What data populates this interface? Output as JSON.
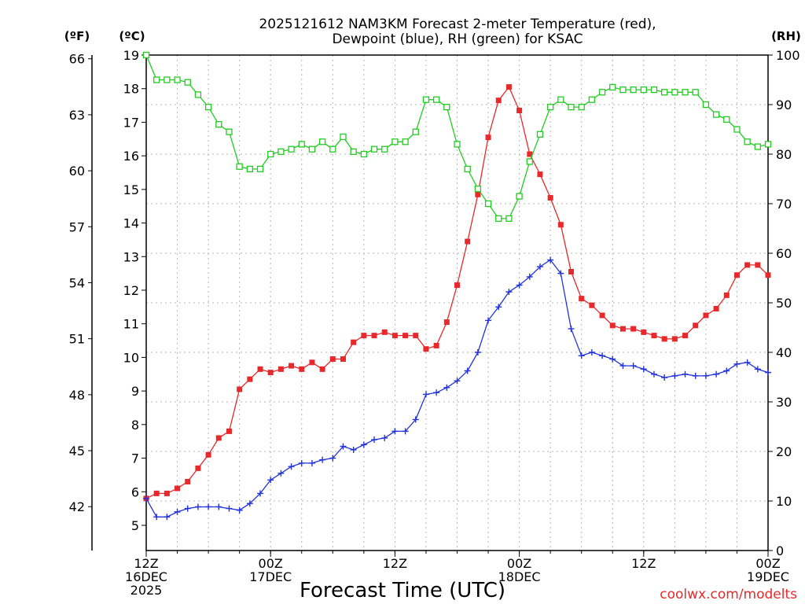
{
  "chart_data": {
    "type": "line",
    "title": [
      "2025121612 NAM3KM Forecast 2-meter Temperature (red),",
      "Dewpoint (blue), RH (green) for KSAC"
    ],
    "xlabel": "Forecast Time (UTC)",
    "credit": "coolwx.com/modelts",
    "axes": {
      "celsius": {
        "unit_label": "(ºC)",
        "range": [
          4.25,
          19
        ],
        "ticks": [
          5,
          6,
          7,
          8,
          9,
          10,
          11,
          12,
          13,
          14,
          15,
          16,
          17,
          18,
          19
        ]
      },
      "fahrenheit": {
        "unit_label": "(ºF)",
        "ticks": [
          42,
          45,
          48,
          51,
          54,
          57,
          60,
          63,
          66
        ]
      },
      "rh": {
        "unit_label": "(RH)",
        "range": [
          0,
          100
        ],
        "ticks": [
          0,
          10,
          20,
          30,
          40,
          50,
          60,
          70,
          80,
          90,
          100
        ]
      },
      "x": {
        "unit": "forecast hour",
        "range": [
          0,
          60
        ],
        "ticks": [
          {
            "hour": 0,
            "lines": [
              "12Z",
              "16DEC",
              "2025"
            ]
          },
          {
            "hour": 12,
            "lines": [
              "00Z",
              "17DEC"
            ]
          },
          {
            "hour": 24,
            "lines": [
              "12Z"
            ]
          },
          {
            "hour": 36,
            "lines": [
              "00Z",
              "18DEC"
            ]
          },
          {
            "hour": 48,
            "lines": [
              "12Z"
            ]
          },
          {
            "hour": 60,
            "lines": [
              "00Z",
              "19DEC"
            ]
          }
        ]
      }
    },
    "x": [
      0,
      1,
      2,
      3,
      4,
      5,
      6,
      7,
      8,
      9,
      10,
      11,
      12,
      13,
      14,
      15,
      16,
      17,
      18,
      19,
      20,
      21,
      22,
      23,
      24,
      25,
      26,
      27,
      28,
      29,
      30,
      31,
      32,
      33,
      34,
      35,
      36,
      37,
      38,
      39,
      40,
      41,
      42,
      43,
      44,
      45,
      46,
      47,
      48,
      49,
      50,
      51,
      52,
      53,
      54,
      55,
      56,
      57,
      58,
      59,
      60
    ],
    "series": [
      {
        "name": "Temperature",
        "axis": "celsius",
        "color": "#e8282a",
        "marker": "filled-square",
        "values": [
          5.8,
          5.95,
          5.95,
          6.1,
          6.3,
          6.7,
          7.1,
          7.6,
          7.8,
          9.05,
          9.35,
          9.65,
          9.55,
          9.65,
          9.75,
          9.65,
          9.85,
          9.65,
          9.95,
          9.95,
          10.45,
          10.65,
          10.65,
          10.75,
          10.65,
          10.65,
          10.65,
          10.25,
          10.35,
          11.05,
          12.15,
          13.45,
          14.85,
          16.55,
          17.65,
          18.05,
          17.35,
          16.05,
          15.45,
          14.75,
          13.95,
          12.55,
          11.75,
          11.55,
          11.25,
          10.95,
          10.85,
          10.85,
          10.75,
          10.65,
          10.55,
          10.55,
          10.65,
          10.95,
          11.25,
          11.45,
          11.85,
          12.45,
          12.75,
          12.75,
          12.45
        ]
      },
      {
        "name": "Dewpoint",
        "axis": "celsius",
        "color": "#2233dd",
        "marker": "plus",
        "values": [
          5.8,
          5.25,
          5.25,
          5.4,
          5.5,
          5.55,
          5.55,
          5.55,
          5.5,
          5.45,
          5.65,
          5.95,
          6.35,
          6.55,
          6.75,
          6.85,
          6.85,
          6.95,
          7.0,
          7.35,
          7.25,
          7.4,
          7.55,
          7.6,
          7.8,
          7.8,
          8.15,
          8.9,
          8.95,
          9.1,
          9.3,
          9.6,
          10.15,
          11.1,
          11.5,
          11.95,
          12.15,
          12.4,
          12.7,
          12.9,
          12.5,
          10.85,
          10.05,
          10.15,
          10.05,
          9.95,
          9.75,
          9.75,
          9.65,
          9.5,
          9.4,
          9.45,
          9.5,
          9.45,
          9.45,
          9.5,
          9.6,
          9.8,
          9.85,
          9.65,
          9.55
        ]
      },
      {
        "name": "RH",
        "axis": "rh",
        "color": "#22cc22",
        "marker": "open-square",
        "values": [
          100,
          95,
          95,
          95,
          94.5,
          92,
          89.5,
          86,
          84.5,
          77.5,
          77,
          77,
          80,
          80.5,
          81,
          82,
          81,
          82.5,
          81,
          83.5,
          80.5,
          80,
          81,
          81,
          82.5,
          82.5,
          84.5,
          91,
          91,
          89.5,
          82,
          77,
          73,
          70,
          67,
          67,
          71.5,
          78.5,
          84,
          89.5,
          91,
          89.5,
          89.5,
          91,
          92.5,
          93.5,
          93,
          93,
          93,
          93,
          92.5,
          92.5,
          92.5,
          92.5,
          90,
          88,
          87,
          85,
          82.5,
          81.5,
          82
        ]
      }
    ]
  }
}
